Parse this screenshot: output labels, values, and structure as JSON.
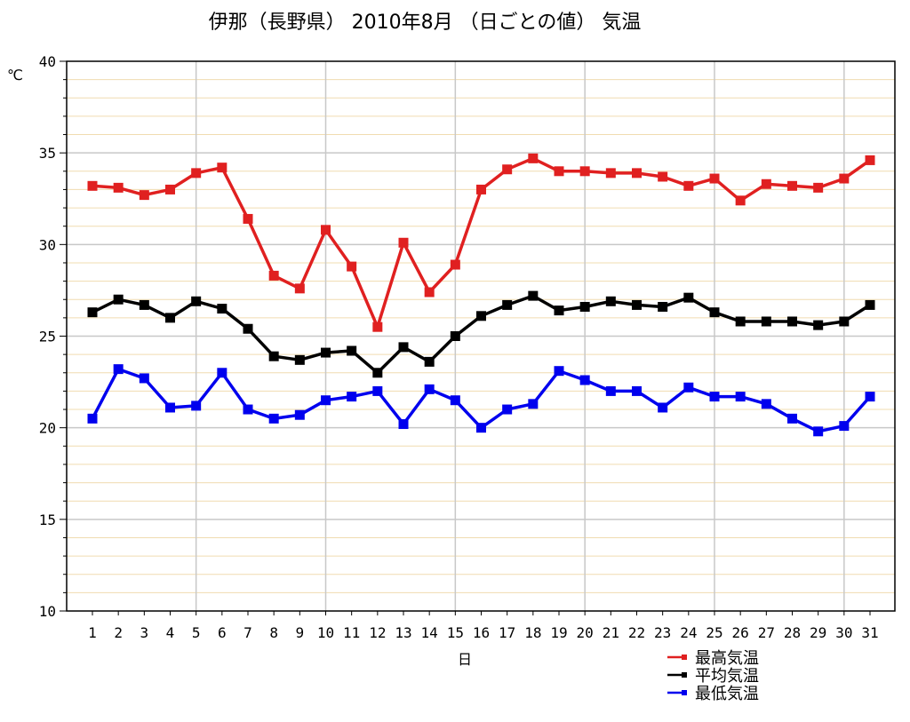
{
  "chart_data": {
    "type": "line",
    "title": "伊那（長野県） 2010年8月 （日ごとの値） 気温",
    "ylabel": "℃",
    "xlabel": "日",
    "ylim": [
      10,
      40
    ],
    "y_ticks": [
      "10",
      "15",
      "20",
      "25",
      "30",
      "35",
      "40"
    ],
    "x": [
      "1",
      "2",
      "3",
      "4",
      "5",
      "6",
      "7",
      "8",
      "9",
      "10",
      "11",
      "12",
      "13",
      "14",
      "15",
      "16",
      "17",
      "18",
      "19",
      "20",
      "21",
      "22",
      "23",
      "24",
      "25",
      "26",
      "27",
      "28",
      "29",
      "30",
      "31"
    ],
    "minor_gridline_color": "#f0dcb0",
    "major_gridline_color": "#c8c8c8",
    "legend_position": "bottom-right",
    "series": [
      {
        "name": "最高気温",
        "color": "#e02020",
        "values": [
          33.2,
          33.1,
          32.7,
          33.0,
          33.9,
          34.2,
          31.4,
          28.3,
          27.6,
          30.8,
          28.8,
          25.5,
          30.1,
          27.4,
          28.9,
          33.0,
          34.1,
          34.7,
          34.0,
          34.0,
          33.9,
          33.9,
          33.7,
          33.2,
          33.6,
          32.4,
          33.3,
          33.2,
          33.1,
          33.6,
          34.6
        ]
      },
      {
        "name": "平均気温",
        "color": "#000000",
        "values": [
          26.3,
          27.0,
          26.7,
          26.0,
          26.9,
          26.5,
          25.4,
          23.9,
          23.7,
          24.1,
          24.2,
          23.0,
          24.4,
          23.6,
          25.0,
          26.1,
          26.7,
          27.2,
          26.4,
          26.6,
          26.9,
          26.7,
          26.6,
          27.1,
          26.3,
          25.8,
          25.8,
          25.8,
          25.6,
          25.8,
          26.7
        ]
      },
      {
        "name": "最低気温",
        "color": "#0000ee",
        "values": [
          20.5,
          23.2,
          22.7,
          21.1,
          21.2,
          23.0,
          21.0,
          20.5,
          20.7,
          21.5,
          21.7,
          22.0,
          20.2,
          22.1,
          21.5,
          20.0,
          21.0,
          21.3,
          23.1,
          22.6,
          22.0,
          22.0,
          21.1,
          22.2,
          21.7,
          21.7,
          21.3,
          20.5,
          19.8,
          20.1,
          21.7
        ]
      }
    ]
  }
}
